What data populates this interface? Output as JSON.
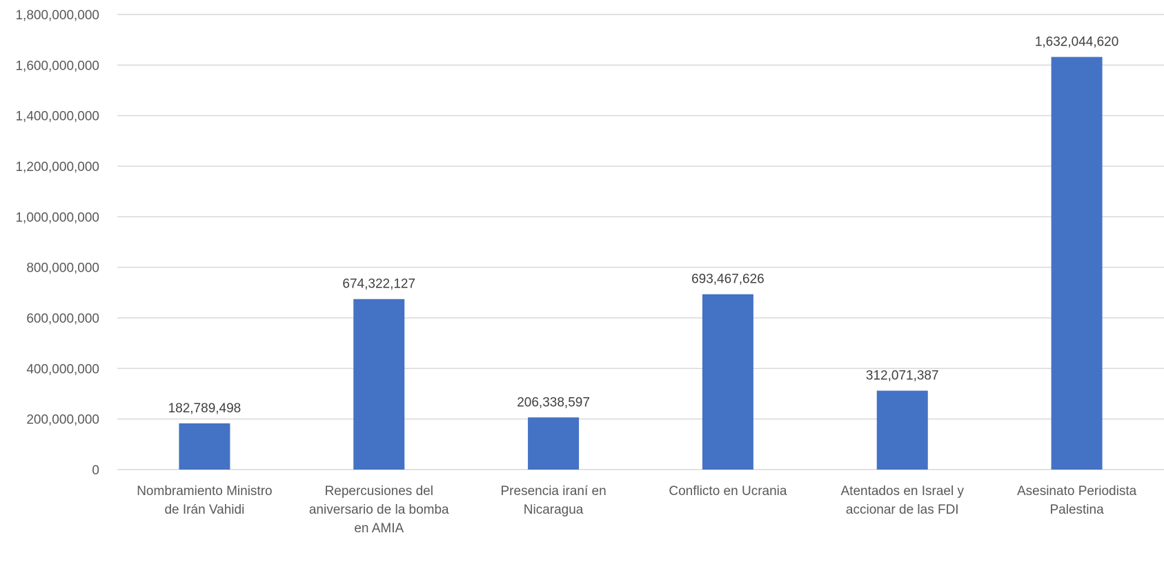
{
  "chart_data": {
    "type": "bar",
    "title": "",
    "xlabel": "",
    "ylabel": "",
    "categories": [
      [
        "Nombramiento Ministro",
        "de Irán Vahidi"
      ],
      [
        "Repercusiones del",
        "aniversario de la bomba",
        "en AMIA"
      ],
      [
        "Presencia iraní en",
        "Nicaragua"
      ],
      [
        "Conflicto en Ucrania"
      ],
      [
        "Atentados en Israel y",
        "accionar de las FDI"
      ],
      [
        "Asesinato Periodista",
        "Palestina"
      ]
    ],
    "values": [
      182789498,
      674322127,
      206338597,
      693467626,
      312071387,
      1632044620
    ],
    "data_labels": [
      "182,789,498",
      "674,322,127",
      "206,338,597",
      "693,467,626",
      "312,071,387",
      "1,632,044,620"
    ],
    "ylim": [
      0,
      1800000000
    ],
    "yticks": [
      0,
      200000000,
      400000000,
      600000000,
      800000000,
      1000000000,
      1200000000,
      1400000000,
      1600000000,
      1800000000
    ],
    "ytick_labels": [
      "0",
      "200,000,000",
      "400,000,000",
      "600,000,000",
      "800,000,000",
      "1,000,000,000",
      "1,200,000,000",
      "1,400,000,000",
      "1,600,000,000",
      "1,800,000,000"
    ],
    "grid": true,
    "legend": "none",
    "bar_color": "#4472C4",
    "grid_color": "#D9D9D9",
    "text_color": "#595959"
  }
}
